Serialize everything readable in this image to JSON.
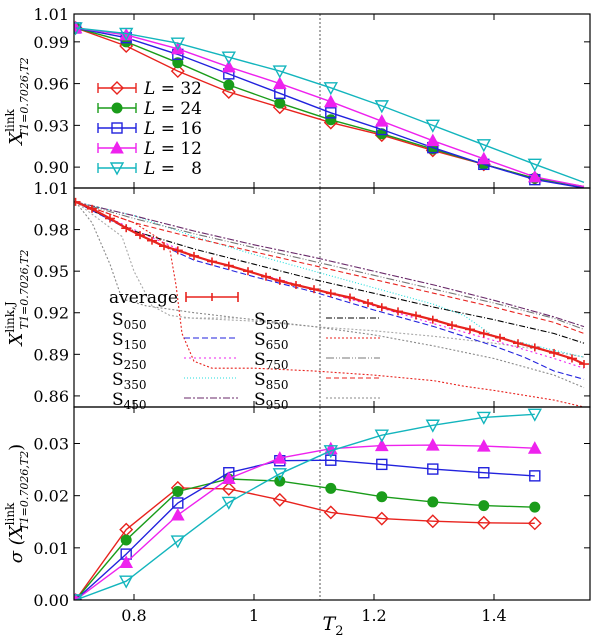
{
  "figure": {
    "shared_xlabel": "T",
    "shared_xlabel_sub": "2"
  },
  "colors": {
    "L32": "#e8231e",
    "L24": "#1a9c1a",
    "L16": "#2222dd",
    "L12": "#ee22ee",
    "L8": "#13b5bd",
    "S050": "#a9a9a9",
    "S150": "#2222dd",
    "S250": "#ee22ee",
    "S350": "#22dddd",
    "S450": "#6a2a6a",
    "S550": "#000000",
    "S650": "#e8231e",
    "S750": "#777777",
    "S850": "#e8231e",
    "S950": "#8a8a8a",
    "average": "#e8231e",
    "vline": "#555555"
  },
  "chart_data": [
    {
      "type": "line",
      "panel": "top",
      "ylabel": "X",
      "ylabel_sup": "link",
      "ylabel_sub": "T1=0.7026,T2",
      "xlim": [
        0.7,
        1.56
      ],
      "ylim": [
        0.885,
        1.01
      ],
      "yticks": [
        0.9,
        0.93,
        0.96,
        0.99,
        1.01
      ],
      "ytick_labels": [
        "0.90",
        "0.93",
        "0.96",
        "0.99",
        "1.01"
      ],
      "vline_x": 1.11,
      "legend": "top-left",
      "series": [
        {
          "name": "L = 32",
          "key": "L32",
          "marker": "diamond",
          "x": [
            0.7026,
            0.787,
            0.873,
            0.958,
            1.043,
            1.128,
            1.213,
            1.298,
            1.383,
            1.468,
            1.55
          ],
          "y": [
            1.0,
            0.987,
            0.969,
            0.954,
            0.943,
            0.932,
            0.923,
            0.912,
            0.902,
            0.892,
            0.886
          ]
        },
        {
          "name": "L = 24",
          "key": "L24",
          "marker": "circle",
          "x": [
            0.7026,
            0.787,
            0.873,
            0.958,
            1.043,
            1.128,
            1.213,
            1.298,
            1.383,
            1.468,
            1.55
          ],
          "y": [
            1.0,
            0.99,
            0.975,
            0.959,
            0.946,
            0.934,
            0.924,
            0.913,
            0.902,
            0.892,
            0.886
          ]
        },
        {
          "name": "L = 16",
          "key": "L16",
          "marker": "square",
          "x": [
            0.7026,
            0.787,
            0.873,
            0.958,
            1.043,
            1.128,
            1.213,
            1.298,
            1.383,
            1.468,
            1.55
          ],
          "y": [
            1.0,
            0.993,
            0.981,
            0.967,
            0.953,
            0.939,
            0.927,
            0.914,
            0.902,
            0.891,
            0.885
          ]
        },
        {
          "name": "L = 12",
          "key": "L12",
          "marker": "triangle-up",
          "x": [
            0.7026,
            0.787,
            0.873,
            0.958,
            1.043,
            1.128,
            1.213,
            1.298,
            1.383,
            1.468,
            1.55
          ],
          "y": [
            1.0,
            0.995,
            0.985,
            0.972,
            0.96,
            0.947,
            0.933,
            0.919,
            0.906,
            0.893,
            0.886
          ]
        },
        {
          "name": "L =   8",
          "key": "L8",
          "marker": "triangle-down",
          "x": [
            0.7026,
            0.787,
            0.873,
            0.958,
            1.043,
            1.128,
            1.213,
            1.298,
            1.383,
            1.468,
            1.55
          ],
          "y": [
            1.0,
            0.996,
            0.989,
            0.979,
            0.969,
            0.957,
            0.944,
            0.93,
            0.916,
            0.902,
            0.889
          ]
        }
      ]
    },
    {
      "type": "line",
      "panel": "middle",
      "ylabel": "X",
      "ylabel_sup": "link,J",
      "ylabel_sub": "T1=0.7026,T2",
      "xlim": [
        0.7,
        1.56
      ],
      "ylim": [
        0.852,
        1.01
      ],
      "yticks": [
        0.86,
        0.89,
        0.92,
        0.95,
        0.98,
        1.01
      ],
      "ytick_labels": [
        "0.86",
        "0.89",
        "0.92",
        "0.95",
        "0.98",
        "1.01"
      ],
      "vline_x": 1.11,
      "legend": "bottom",
      "average": {
        "name": "average",
        "x": [
          0.7026,
          0.73,
          0.76,
          0.787,
          0.81,
          0.83,
          0.85,
          0.873,
          0.9,
          0.93,
          0.958,
          0.99,
          1.02,
          1.043,
          1.07,
          1.1,
          1.128,
          1.16,
          1.19,
          1.213,
          1.24,
          1.27,
          1.298,
          1.33,
          1.36,
          1.383,
          1.41,
          1.44,
          1.468,
          1.5,
          1.53,
          1.55
        ],
        "y": [
          1.0,
          0.995,
          0.988,
          0.981,
          0.976,
          0.972,
          0.968,
          0.965,
          0.961,
          0.957,
          0.954,
          0.95,
          0.946,
          0.943,
          0.94,
          0.937,
          0.934,
          0.931,
          0.927,
          0.924,
          0.921,
          0.918,
          0.915,
          0.911,
          0.908,
          0.905,
          0.902,
          0.898,
          0.895,
          0.891,
          0.887,
          0.883
        ]
      },
      "samples": [
        {
          "name": "S",
          "sub": "050",
          "key": "S050",
          "dash": "2,2",
          "x": [
            0.7026,
            0.78,
            0.8,
            0.83,
            0.86,
            0.9,
            1.0,
            1.1,
            1.2,
            1.3,
            1.4,
            1.5,
            1.55
          ],
          "y": [
            1.0,
            0.975,
            0.95,
            0.925,
            0.918,
            0.916,
            0.914,
            0.91,
            0.907,
            0.903,
            0.898,
            0.892,
            0.888
          ]
        },
        {
          "name": "S",
          "sub": "150",
          "key": "S150",
          "dash": "6,3",
          "x": [
            0.7026,
            0.8,
            0.9,
            1.0,
            1.1,
            1.2,
            1.3,
            1.4,
            1.45,
            1.5,
            1.55
          ],
          "y": [
            1.0,
            0.978,
            0.958,
            0.946,
            0.935,
            0.922,
            0.91,
            0.896,
            0.888,
            0.878,
            0.872
          ]
        },
        {
          "name": "S",
          "sub": "250",
          "key": "S250",
          "dash": "2,3",
          "x": [
            0.7026,
            0.8,
            0.9,
            1.0,
            1.1,
            1.2,
            1.3,
            1.4,
            1.5,
            1.55
          ],
          "y": [
            1.0,
            0.98,
            0.961,
            0.949,
            0.937,
            0.925,
            0.912,
            0.9,
            0.887,
            0.88
          ]
        },
        {
          "name": "S",
          "sub": "350",
          "key": "S350",
          "dash": "1,2",
          "x": [
            0.7026,
            0.8,
            0.9,
            1.0,
            1.1,
            1.2,
            1.3,
            1.35,
            1.4,
            1.5,
            1.55
          ],
          "y": [
            1.0,
            0.99,
            0.975,
            0.962,
            0.95,
            0.938,
            0.926,
            0.918,
            0.903,
            0.893,
            0.888
          ]
        },
        {
          "name": "S",
          "sub": "450",
          "key": "S450",
          "dash": "7,2,2,2",
          "x": [
            0.7026,
            0.8,
            0.9,
            1.0,
            1.1,
            1.2,
            1.3,
            1.4,
            1.5,
            1.55
          ],
          "y": [
            1.0,
            0.99,
            0.979,
            0.969,
            0.96,
            0.95,
            0.94,
            0.929,
            0.917,
            0.91
          ]
        },
        {
          "name": "S",
          "sub": "550",
          "key": "S550",
          "dash": "6,2,1,2",
          "x": [
            0.7026,
            0.8,
            0.9,
            1.0,
            1.1,
            1.2,
            1.3,
            1.4,
            1.5,
            1.55
          ],
          "y": [
            1.0,
            0.979,
            0.966,
            0.955,
            0.944,
            0.934,
            0.924,
            0.915,
            0.905,
            0.898
          ]
        },
        {
          "name": "S",
          "sub": "650",
          "key": "S650",
          "dash": "2,2",
          "x": [
            0.7026,
            0.8,
            0.84,
            0.86,
            0.87,
            0.88,
            0.9,
            0.93,
            0.95,
            1.0,
            1.1,
            1.2,
            1.3,
            1.35,
            1.4,
            1.5,
            1.55
          ],
          "y": [
            1.0,
            0.985,
            0.974,
            0.965,
            0.94,
            0.905,
            0.885,
            0.88,
            0.88,
            0.88,
            0.878,
            0.875,
            0.871,
            0.867,
            0.864,
            0.857,
            0.852
          ]
        },
        {
          "name": "S",
          "sub": "750",
          "key": "S750",
          "dash": "8,2,1,2,1,2",
          "x": [
            0.7026,
            0.8,
            0.9,
            1.0,
            1.1,
            1.2,
            1.3,
            1.4,
            1.5,
            1.55
          ],
          "y": [
            1.0,
            0.988,
            0.977,
            0.967,
            0.957,
            0.947,
            0.937,
            0.927,
            0.916,
            0.908
          ]
        },
        {
          "name": "S",
          "sub": "850",
          "key": "S850",
          "dash": "5,3",
          "x": [
            0.7026,
            0.8,
            0.9,
            1.0,
            1.1,
            1.2,
            1.3,
            1.4,
            1.5,
            1.55
          ],
          "y": [
            1.0,
            0.985,
            0.974,
            0.964,
            0.954,
            0.944,
            0.934,
            0.924,
            0.913,
            0.905
          ]
        },
        {
          "name": "S",
          "sub": "950",
          "key": "S950",
          "dash": "2,2",
          "x": [
            0.7026,
            0.73,
            0.76,
            0.78,
            0.82,
            0.9,
            1.0,
            1.1,
            1.2,
            1.3,
            1.4,
            1.5,
            1.55
          ],
          "y": [
            1.0,
            0.985,
            0.955,
            0.93,
            0.925,
            0.92,
            0.915,
            0.91,
            0.904,
            0.896,
            0.887,
            0.875,
            0.866
          ]
        }
      ]
    },
    {
      "type": "line",
      "panel": "bottom",
      "ylabel": "σ (X",
      "ylabel_sup": "link",
      "ylabel_sub": "T1=0.7026,T2",
      "ylabel_close": ")",
      "xlabel": "T2",
      "xlim": [
        0.7,
        1.56
      ],
      "ylim": [
        0.0,
        0.037
      ],
      "yticks": [
        0.0,
        0.01,
        0.02,
        0.03
      ],
      "ytick_labels": [
        "0.00",
        "0.01",
        "0.02",
        "0.03"
      ],
      "xticks": [
        0.8,
        1.0,
        1.2,
        1.4
      ],
      "xtick_labels": [
        "0.8",
        "1",
        "1.2",
        "1.4"
      ],
      "vline_x": 1.11,
      "series": [
        {
          "name": "L = 32",
          "key": "L32",
          "marker": "diamond",
          "x": [
            0.7026,
            0.787,
            0.873,
            0.958,
            1.043,
            1.128,
            1.213,
            1.298,
            1.383,
            1.468
          ],
          "y": [
            0.0,
            0.0135,
            0.0215,
            0.0213,
            0.0192,
            0.0168,
            0.0156,
            0.0151,
            0.0148,
            0.0147
          ]
        },
        {
          "name": "L = 24",
          "key": "L24",
          "marker": "circle",
          "x": [
            0.7026,
            0.787,
            0.873,
            0.958,
            1.043,
            1.128,
            1.213,
            1.298,
            1.383,
            1.468
          ],
          "y": [
            0.0,
            0.0115,
            0.0208,
            0.0232,
            0.0228,
            0.0214,
            0.0198,
            0.0188,
            0.0181,
            0.0178
          ]
        },
        {
          "name": "L = 16",
          "key": "L16",
          "marker": "square",
          "x": [
            0.7026,
            0.787,
            0.873,
            0.958,
            1.043,
            1.128,
            1.213,
            1.298,
            1.383,
            1.468
          ],
          "y": [
            0.0,
            0.0088,
            0.0186,
            0.0244,
            0.0267,
            0.0268,
            0.026,
            0.0251,
            0.0244,
            0.0238
          ]
        },
        {
          "name": "L = 12",
          "key": "L12",
          "marker": "triangle-up",
          "x": [
            0.7026,
            0.787,
            0.873,
            0.958,
            1.043,
            1.128,
            1.213,
            1.298,
            1.383,
            1.468
          ],
          "y": [
            0.0,
            0.0072,
            0.0163,
            0.0233,
            0.0272,
            0.029,
            0.0296,
            0.0297,
            0.0295,
            0.0291
          ]
        },
        {
          "name": "L =   8",
          "key": "L8",
          "marker": "triangle-down",
          "x": [
            0.7026,
            0.787,
            0.873,
            0.958,
            1.043,
            1.128,
            1.213,
            1.298,
            1.383,
            1.468
          ],
          "y": [
            0.0,
            0.0036,
            0.0113,
            0.0187,
            0.0242,
            0.0286,
            0.0316,
            0.0335,
            0.035,
            0.0356
          ]
        }
      ]
    }
  ]
}
